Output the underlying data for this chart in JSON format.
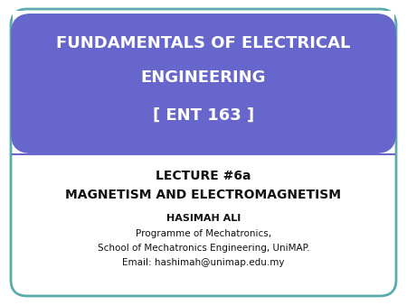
{
  "bg_color": "#ffffff",
  "outer_border_color": "#5aacaa",
  "header_bg_color": "#6666cc",
  "header_text_color": "#ffffff",
  "header_lines": [
    "FUNDAMENTALS OF ELECTRICAL",
    "ENGINEERING",
    "[ ENT 163 ]"
  ],
  "lecture_line1": "LECTURE #6a",
  "lecture_line2": "MAGNETISM AND ELECTROMAGNETISM",
  "author_name": "HASIMAH ALI",
  "affil1": "Programme of Mechatronics,",
  "affil2": "School of Mechatronics Engineering, UniMAP.",
  "affil3": "Email: hashimah@unimap.edu.my",
  "divider_color": "#6666cc",
  "text_color": "#111111",
  "header_fontsize": 13,
  "lecture_fontsize1": 10,
  "lecture_fontsize2": 10,
  "author_fontsize": 8,
  "affil_fontsize": 7.5
}
